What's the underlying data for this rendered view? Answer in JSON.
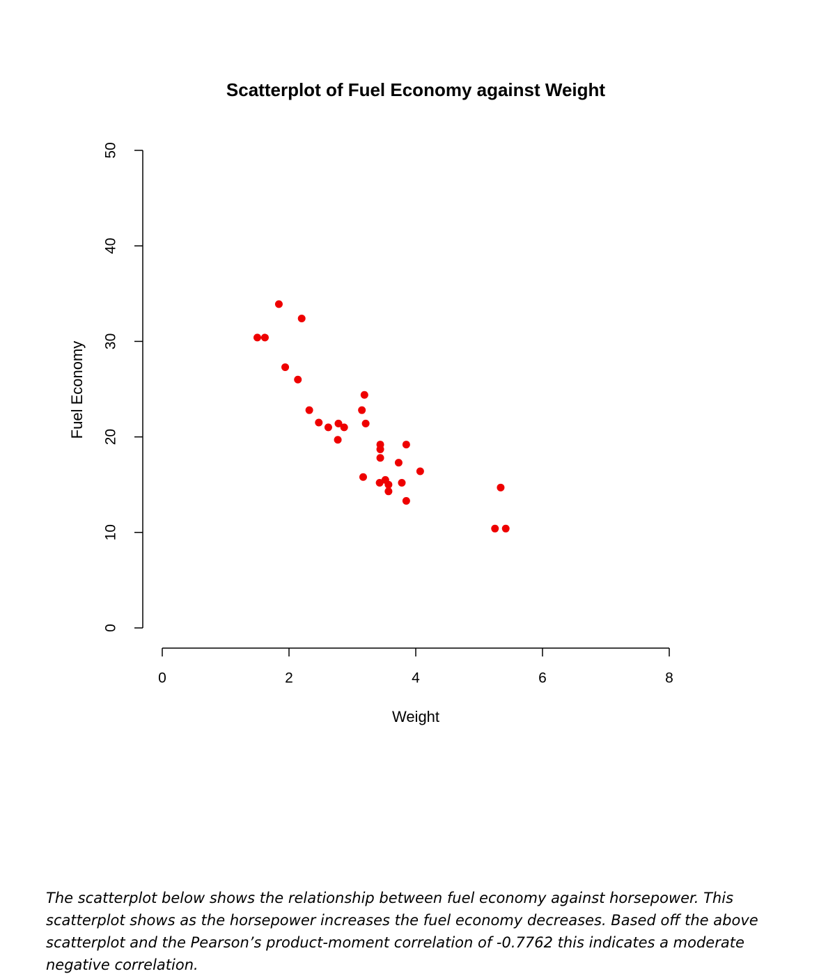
{
  "chart_data": {
    "type": "scatter",
    "title": "Scatterplot of Fuel Economy against Weight",
    "x_label": "Weight",
    "y_label": "Fuel Economy",
    "x": [
      1.5,
      1.62,
      1.84,
      2.2,
      1.94,
      2.14,
      2.32,
      2.47,
      2.62,
      2.78,
      2.87,
      2.77,
      3.19,
      3.15,
      3.21,
      3.17,
      3.44,
      3.44,
      3.44,
      3.85,
      3.73,
      4.07,
      3.43,
      3.52,
      3.57,
      3.57,
      3.78,
      3.85,
      5.34,
      5.25,
      5.42
    ],
    "y": [
      30.4,
      30.4,
      33.9,
      32.4,
      27.3,
      26.0,
      22.8,
      21.5,
      21.0,
      21.4,
      21.0,
      19.7,
      24.4,
      22.8,
      21.4,
      15.8,
      19.2,
      18.7,
      17.8,
      19.2,
      17.3,
      16.4,
      15.2,
      15.5,
      15.0,
      14.3,
      15.2,
      13.3,
      14.7,
      10.4,
      10.4
    ],
    "color": "#ee0000",
    "xlim": [
      0,
      8
    ],
    "ylim": [
      0,
      50
    ],
    "xticks": [
      0,
      2,
      4,
      6,
      8
    ],
    "yticks": [
      0,
      10,
      20,
      30,
      40,
      50
    ]
  },
  "document": {
    "paragraph": "The scatterplot below shows the relationship between fuel economy against horsepower. This scatterplot shows as the horsepower increases the fuel economy decreases. Based off the above scatterplot and the Pearson’s product-moment correlation of -0.7762 this indicates a moderate negative correlation."
  }
}
